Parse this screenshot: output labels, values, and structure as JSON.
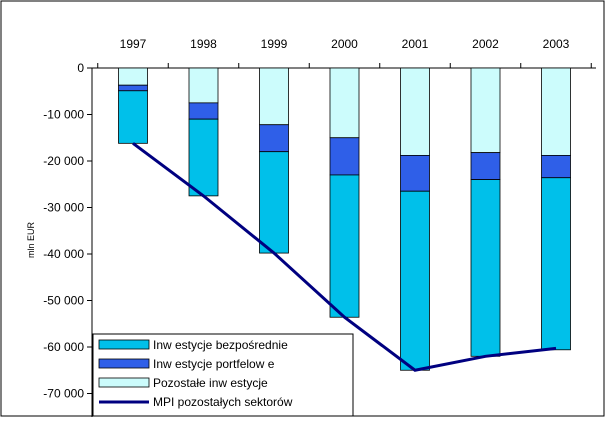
{
  "chart_data": {
    "type": "bar",
    "stacked": true,
    "categories": [
      "1997",
      "1998",
      "1999",
      "2000",
      "2001",
      "2002",
      "2003"
    ],
    "series": [
      {
        "name": "Inw estycje bezpośrednie",
        "kind": "bar",
        "color": "#00c0ea",
        "values": [
          -11300,
          -16500,
          -21800,
          -30600,
          -38500,
          -38000,
          -37000
        ]
      },
      {
        "name": "Inw estycje portfelow e",
        "kind": "bar",
        "color": "#2f5fe8",
        "values": [
          -1200,
          -3500,
          -5800,
          -8000,
          -7700,
          -5800,
          -4800
        ]
      },
      {
        "name": "Pozostałe inw estycje",
        "kind": "bar",
        "color": "#ccfcfc",
        "values": [
          -3700,
          -7500,
          -12200,
          -15000,
          -18800,
          -18200,
          -18800
        ]
      },
      {
        "name": "MPI pozostałych sektorów",
        "kind": "line",
        "color": "#000080",
        "values": [
          -16200,
          -27500,
          -39800,
          -53600,
          -65000,
          -62000,
          -60300
        ]
      }
    ],
    "ylabel": "mln EUR",
    "ylim": [
      -70000,
      0
    ],
    "yticks": [
      0,
      -10000,
      -20000,
      -30000,
      -40000,
      -50000,
      -60000,
      -70000
    ],
    "ytick_labels": [
      "0",
      "-10 000",
      "-20 000",
      "-30 000",
      "-40 000",
      "-50 000",
      "-60 000",
      "-70 000"
    ],
    "x_axis_position": "top",
    "grid": false,
    "legend_position": "bottom-left"
  }
}
